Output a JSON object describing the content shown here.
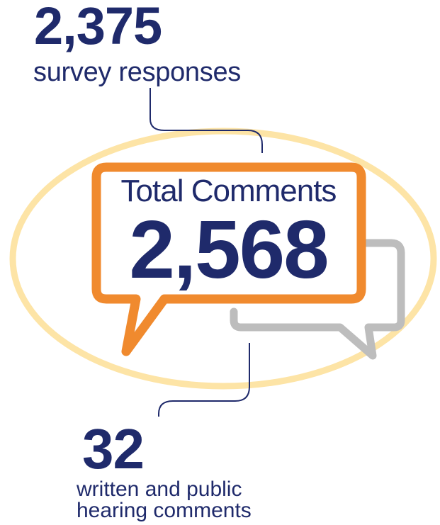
{
  "survey": {
    "number": "2,375",
    "label": "survey responses"
  },
  "total": {
    "label": "Total Comments",
    "number": "2,568"
  },
  "written": {
    "number": "32",
    "label_line1": "written and public",
    "label_line2": "hearing comments"
  },
  "colors": {
    "navy": "#1f2a6b",
    "orange": "#f08a2e",
    "ellipse": "#fde4a6",
    "gray_bubble": "#bdbdbd"
  }
}
